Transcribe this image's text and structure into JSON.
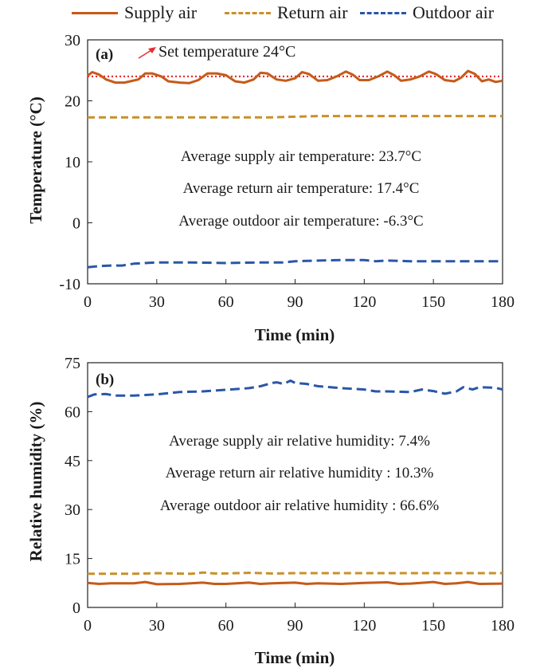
{
  "legend": [
    {
      "name": "Supply air",
      "color": "#c65a1a",
      "dash": "solid"
    },
    {
      "name": "Return air",
      "color": "#c9902a",
      "dash": "dashed"
    },
    {
      "name": "Outdoor air",
      "color": "#2a56a8",
      "dash": "dashed"
    }
  ],
  "chart_data": [
    {
      "type": "line",
      "panel_label": "(a)",
      "xlabel": "Time (min)",
      "ylabel": "Temperature (°C)",
      "xlim": [
        0,
        180
      ],
      "ylim": [
        -10,
        30
      ],
      "xticks": [
        0,
        30,
        60,
        90,
        120,
        150,
        180
      ],
      "yticks": [
        -10,
        0,
        10,
        20,
        30
      ],
      "grid": false,
      "setpoint": {
        "value": 24,
        "label": "Set temperature 24°C",
        "color": "#e53030",
        "style": "dotted"
      },
      "annotations": [
        "Average supply air temperature: 23.7°C",
        "Average return air temperature: 17.4°C",
        "Average outdoor air temperature: -6.3°C"
      ],
      "series": [
        {
          "name": "Supply air",
          "color": "#c65a1a",
          "dash": "solid",
          "x": [
            0,
            2,
            5,
            8,
            12,
            16,
            22,
            25,
            28,
            32,
            35,
            40,
            44,
            48,
            52,
            56,
            60,
            64,
            68,
            72,
            75,
            78,
            82,
            86,
            90,
            93,
            96,
            100,
            104,
            108,
            112,
            115,
            118,
            122,
            126,
            130,
            133,
            136,
            140,
            144,
            148,
            151,
            155,
            159,
            162,
            165,
            168,
            171,
            174,
            177,
            180
          ],
          "y": [
            24.1,
            24.7,
            24.3,
            23.5,
            23.0,
            23.0,
            23.5,
            24.5,
            24.5,
            24.0,
            23.2,
            23.0,
            22.9,
            23.4,
            24.5,
            24.5,
            24.2,
            23.2,
            23.0,
            23.5,
            24.6,
            24.5,
            23.5,
            23.3,
            23.7,
            24.7,
            24.4,
            23.3,
            23.4,
            24.0,
            24.8,
            24.3,
            23.4,
            23.4,
            24.0,
            24.8,
            24.2,
            23.3,
            23.5,
            24.0,
            24.8,
            24.4,
            23.4,
            23.2,
            23.8,
            24.9,
            24.4,
            23.2,
            23.5,
            23.1,
            23.3
          ]
        },
        {
          "name": "Return air",
          "color": "#c9902a",
          "dash": "dashed",
          "x": [
            0,
            20,
            40,
            60,
            80,
            90,
            100,
            120,
            140,
            160,
            180
          ],
          "y": [
            17.3,
            17.3,
            17.3,
            17.3,
            17.3,
            17.4,
            17.5,
            17.5,
            17.5,
            17.5,
            17.5
          ]
        },
        {
          "name": "Outdoor air",
          "color": "#2a56a8",
          "dash": "dashed",
          "x": [
            0,
            5,
            10,
            15,
            20,
            30,
            45,
            60,
            75,
            85,
            90,
            100,
            110,
            120,
            125,
            130,
            140,
            150,
            160,
            170,
            180
          ],
          "y": [
            -7.3,
            -7.1,
            -7.0,
            -7.0,
            -6.7,
            -6.5,
            -6.5,
            -6.6,
            -6.5,
            -6.5,
            -6.3,
            -6.2,
            -6.1,
            -6.1,
            -6.3,
            -6.2,
            -6.3,
            -6.3,
            -6.3,
            -6.3,
            -6.3
          ]
        }
      ]
    },
    {
      "type": "line",
      "panel_label": "(b)",
      "xlabel": "Time (min)",
      "ylabel": "Relative humidity (%)",
      "xlim": [
        0,
        180
      ],
      "ylim": [
        0,
        75
      ],
      "xticks": [
        0,
        30,
        60,
        90,
        120,
        150,
        180
      ],
      "yticks": [
        0,
        15,
        30,
        45,
        60,
        75
      ],
      "grid": false,
      "annotations": [
        "Average supply air relative humidity:  7.4%",
        "Average return air relative humidity  : 10.3%",
        "Average outdoor air relative humidity  : 66.6%"
      ],
      "series": [
        {
          "name": "Supply air",
          "color": "#c65a1a",
          "dash": "solid",
          "x": [
            0,
            5,
            10,
            20,
            25,
            30,
            40,
            50,
            55,
            60,
            70,
            75,
            80,
            90,
            95,
            100,
            110,
            120,
            130,
            135,
            140,
            150,
            155,
            160,
            165,
            170,
            180
          ],
          "y": [
            7.5,
            7.2,
            7.4,
            7.4,
            7.8,
            7.1,
            7.2,
            7.6,
            7.2,
            7.2,
            7.6,
            7.2,
            7.4,
            7.6,
            7.2,
            7.4,
            7.2,
            7.5,
            7.7,
            7.2,
            7.3,
            7.8,
            7.2,
            7.4,
            7.8,
            7.2,
            7.3
          ]
        },
        {
          "name": "Return air",
          "color": "#c9902a",
          "dash": "dashed",
          "x": [
            0,
            20,
            30,
            45,
            50,
            55,
            60,
            70,
            80,
            90,
            100,
            120,
            140,
            160,
            180
          ],
          "y": [
            10.3,
            10.3,
            10.5,
            10.3,
            10.7,
            10.4,
            10.4,
            10.6,
            10.4,
            10.5,
            10.5,
            10.5,
            10.5,
            10.5,
            10.5
          ]
        },
        {
          "name": "Outdoor air",
          "color": "#2a56a8",
          "dash": "dashed",
          "x": [
            0,
            3,
            8,
            12,
            20,
            30,
            40,
            50,
            60,
            70,
            75,
            80,
            82,
            85,
            88,
            90,
            95,
            100,
            110,
            120,
            125,
            130,
            140,
            145,
            150,
            155,
            160,
            163,
            167,
            170,
            174,
            177,
            180
          ],
          "y": [
            64.5,
            65.3,
            65.4,
            64.9,
            64.9,
            65.3,
            66.0,
            66.2,
            66.7,
            67.2,
            67.8,
            68.8,
            69.0,
            68.5,
            69.5,
            68.8,
            68.5,
            67.8,
            67.2,
            66.8,
            66.2,
            66.2,
            66.0,
            66.8,
            66.3,
            65.5,
            66.2,
            67.5,
            66.8,
            67.5,
            67.4,
            67.3,
            66.8
          ]
        }
      ]
    }
  ]
}
